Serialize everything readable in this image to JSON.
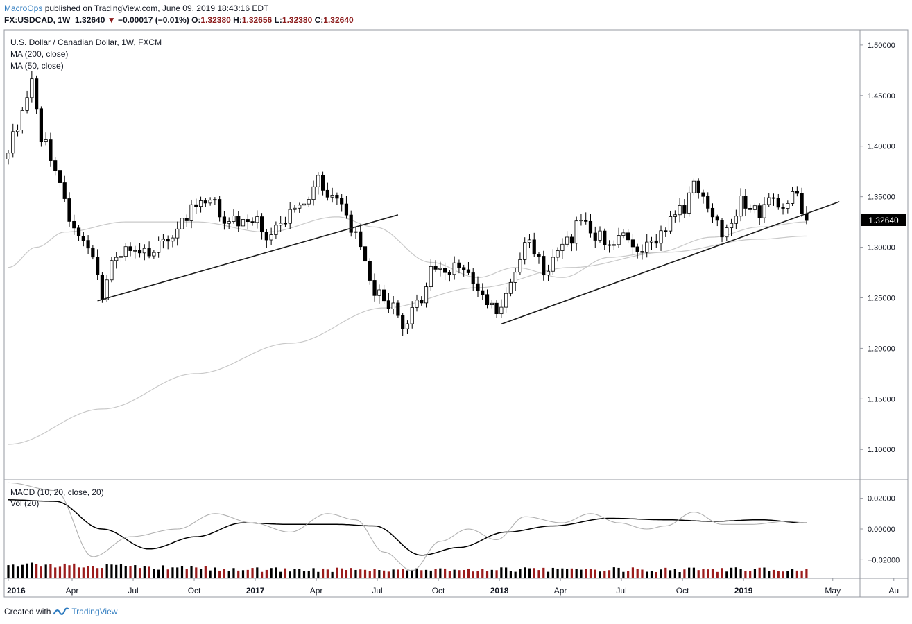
{
  "header": {
    "author": "MacroOps",
    "published": "published on TradingView.com, June 09, 2019 18:43:16 EDT",
    "symbol": "FX:USDCAD, 1W",
    "last": "1.32640",
    "change_arrow": "▼",
    "change": "−0.00017 (−0.01%)",
    "o_label": "O:",
    "o_value": "1.32380",
    "h_label": "H:",
    "h_value": "1.32656",
    "l_label": "L:",
    "l_value": "1.32380",
    "c_label": "C:",
    "c_value": "1.32640"
  },
  "footer": {
    "created_with": "Created with",
    "brand": "TradingView",
    "logo_icon": "tradingview-logo-icon"
  },
  "colors": {
    "bull": "#ffffff",
    "bear": "#000000",
    "ma": "#c8c8c8",
    "macd": "#000000",
    "signal": "#b0b0b0",
    "vol_up": "#000000",
    "vol_down": "#9b1c1c",
    "trend": "#1a1a1a",
    "axis_text": "#131722"
  },
  "chart_data": [
    {
      "type": "candlestick",
      "legend": [
        "U.S. Dollar / Canadian Dollar, 1W, FXCM",
        "MA (200, close)",
        "MA (50, close)"
      ],
      "x_ticks": [
        "2016",
        "Apr",
        "Jul",
        "Oct",
        "2017",
        "Apr",
        "Jul",
        "Oct",
        "2018",
        "Apr",
        "Jul",
        "Oct",
        "2019",
        "May",
        "Au"
      ],
      "bold_ticks": [
        "2016",
        "2017",
        "2018",
        "2019"
      ],
      "y_ticks": [
        "1.50000",
        "1.45000",
        "1.40000",
        "1.35000",
        "1.30000",
        "1.25000",
        "1.20000",
        "1.15000",
        "1.10000"
      ],
      "ylim": [
        1.07,
        1.515
      ],
      "last_price_label": "1.32640",
      "trend_anchors": [
        {
          "t": 0,
          "p": 1.4
        },
        {
          "t": 3,
          "p": 1.43
        },
        {
          "t": 5,
          "p": 1.46
        },
        {
          "t": 7,
          "p": 1.41
        },
        {
          "t": 10,
          "p": 1.38
        },
        {
          "t": 13,
          "p": 1.33
        },
        {
          "t": 16,
          "p": 1.3
        },
        {
          "t": 18,
          "p": 1.285
        },
        {
          "t": 20,
          "p": 1.255
        },
        {
          "t": 22,
          "p": 1.285
        },
        {
          "t": 25,
          "p": 1.3
        },
        {
          "t": 28,
          "p": 1.29
        },
        {
          "t": 31,
          "p": 1.3
        },
        {
          "t": 34,
          "p": 1.31
        },
        {
          "t": 37,
          "p": 1.325
        },
        {
          "t": 40,
          "p": 1.34
        },
        {
          "t": 43,
          "p": 1.345
        },
        {
          "t": 46,
          "p": 1.33
        },
        {
          "t": 49,
          "p": 1.325
        },
        {
          "t": 52,
          "p": 1.33
        },
        {
          "t": 55,
          "p": 1.31
        },
        {
          "t": 58,
          "p": 1.32
        },
        {
          "t": 61,
          "p": 1.34
        },
        {
          "t": 64,
          "p": 1.35
        },
        {
          "t": 66,
          "p": 1.37
        },
        {
          "t": 68,
          "p": 1.355
        },
        {
          "t": 70,
          "p": 1.345
        },
        {
          "t": 72,
          "p": 1.33
        },
        {
          "t": 74,
          "p": 1.31
        },
        {
          "t": 76,
          "p": 1.28
        },
        {
          "t": 78,
          "p": 1.255
        },
        {
          "t": 80,
          "p": 1.25
        },
        {
          "t": 82,
          "p": 1.24
        },
        {
          "t": 84,
          "p": 1.215
        },
        {
          "t": 86,
          "p": 1.235
        },
        {
          "t": 88,
          "p": 1.25
        },
        {
          "t": 90,
          "p": 1.28
        },
        {
          "t": 93,
          "p": 1.275
        },
        {
          "t": 96,
          "p": 1.285
        },
        {
          "t": 98,
          "p": 1.27
        },
        {
          "t": 100,
          "p": 1.255
        },
        {
          "t": 102,
          "p": 1.245
        },
        {
          "t": 104,
          "p": 1.235
        },
        {
          "t": 106,
          "p": 1.25
        },
        {
          "t": 108,
          "p": 1.275
        },
        {
          "t": 110,
          "p": 1.305
        },
        {
          "t": 112,
          "p": 1.3
        },
        {
          "t": 114,
          "p": 1.275
        },
        {
          "t": 116,
          "p": 1.285
        },
        {
          "t": 118,
          "p": 1.3
        },
        {
          "t": 120,
          "p": 1.31
        },
        {
          "t": 122,
          "p": 1.33
        },
        {
          "t": 124,
          "p": 1.315
        },
        {
          "t": 126,
          "p": 1.31
        },
        {
          "t": 128,
          "p": 1.305
        },
        {
          "t": 130,
          "p": 1.31
        },
        {
          "t": 132,
          "p": 1.305
        },
        {
          "t": 134,
          "p": 1.29
        },
        {
          "t": 136,
          "p": 1.3
        },
        {
          "t": 138,
          "p": 1.31
        },
        {
          "t": 140,
          "p": 1.32
        },
        {
          "t": 142,
          "p": 1.33
        },
        {
          "t": 144,
          "p": 1.34
        },
        {
          "t": 146,
          "p": 1.36
        },
        {
          "t": 148,
          "p": 1.355
        },
        {
          "t": 150,
          "p": 1.33
        },
        {
          "t": 152,
          "p": 1.315
        },
        {
          "t": 154,
          "p": 1.33
        },
        {
          "t": 156,
          "p": 1.345
        },
        {
          "t": 158,
          "p": 1.34
        },
        {
          "t": 160,
          "p": 1.335
        },
        {
          "t": 162,
          "p": 1.35
        },
        {
          "t": 164,
          "p": 1.34
        },
        {
          "t": 166,
          "p": 1.35
        },
        {
          "t": 168,
          "p": 1.35
        },
        {
          "t": 170,
          "p": 1.3264
        }
      ],
      "ma200_anchors": [
        {
          "t": 0,
          "p": 1.105
        },
        {
          "t": 20,
          "p": 1.14
        },
        {
          "t": 40,
          "p": 1.175
        },
        {
          "t": 60,
          "p": 1.205
        },
        {
          "t": 80,
          "p": 1.24
        },
        {
          "t": 100,
          "p": 1.26
        },
        {
          "t": 120,
          "p": 1.28
        },
        {
          "t": 140,
          "p": 1.295
        },
        {
          "t": 160,
          "p": 1.308
        },
        {
          "t": 170,
          "p": 1.311
        }
      ],
      "ma50_anchors": [
        {
          "t": 0,
          "p": 1.28
        },
        {
          "t": 6,
          "p": 1.3
        },
        {
          "t": 12,
          "p": 1.315
        },
        {
          "t": 25,
          "p": 1.325
        },
        {
          "t": 40,
          "p": 1.325
        },
        {
          "t": 55,
          "p": 1.315
        },
        {
          "t": 70,
          "p": 1.33
        },
        {
          "t": 78,
          "p": 1.32
        },
        {
          "t": 90,
          "p": 1.285
        },
        {
          "t": 100,
          "p": 1.27
        },
        {
          "t": 108,
          "p": 1.28
        },
        {
          "t": 118,
          "p": 1.27
        },
        {
          "t": 128,
          "p": 1.29
        },
        {
          "t": 138,
          "p": 1.295
        },
        {
          "t": 150,
          "p": 1.31
        },
        {
          "t": 160,
          "p": 1.32
        },
        {
          "t": 170,
          "p": 1.325
        }
      ],
      "trendlines": [
        {
          "from": {
            "t": 19,
            "p": 1.247
          },
          "to": {
            "t": 83,
            "p": 1.332
          }
        },
        {
          "from": {
            "t": 105,
            "p": 1.224
          },
          "to": {
            "t": 177,
            "p": 1.345
          }
        }
      ]
    },
    {
      "type": "line",
      "legend": [
        "MACD (10, 20, close, 20)",
        "Vol (20)"
      ],
      "y_ticks": [
        "0.02000",
        "0.00000",
        "−0.02000"
      ],
      "ylim": [
        -0.032,
        0.032
      ],
      "macd_anchors": [
        {
          "t": 0,
          "v": 0.03
        },
        {
          "t": 10,
          "v": 0.025
        },
        {
          "t": 18,
          "v": -0.018
        },
        {
          "t": 26,
          "v": -0.005
        },
        {
          "t": 36,
          "v": 0.0
        },
        {
          "t": 44,
          "v": 0.01
        },
        {
          "t": 52,
          "v": 0.004
        },
        {
          "t": 60,
          "v": -0.002
        },
        {
          "t": 68,
          "v": 0.01
        },
        {
          "t": 74,
          "v": 0.006
        },
        {
          "t": 80,
          "v": -0.015
        },
        {
          "t": 86,
          "v": -0.027
        },
        {
          "t": 92,
          "v": -0.008
        },
        {
          "t": 98,
          "v": 0.0
        },
        {
          "t": 104,
          "v": -0.007
        },
        {
          "t": 110,
          "v": 0.008
        },
        {
          "t": 118,
          "v": 0.004
        },
        {
          "t": 124,
          "v": 0.01
        },
        {
          "t": 130,
          "v": 0.004
        },
        {
          "t": 136,
          "v": 0.0
        },
        {
          "t": 140,
          "v": 0.002
        },
        {
          "t": 146,
          "v": 0.011
        },
        {
          "t": 152,
          "v": 0.003
        },
        {
          "t": 158,
          "v": 0.003
        },
        {
          "t": 166,
          "v": 0.005
        },
        {
          "t": 170,
          "v": 0.004
        }
      ],
      "signal_anchors": [
        {
          "t": 0,
          "v": 0.019
        },
        {
          "t": 10,
          "v": 0.018
        },
        {
          "t": 20,
          "v": 0.0
        },
        {
          "t": 30,
          "v": -0.013
        },
        {
          "t": 40,
          "v": -0.005
        },
        {
          "t": 50,
          "v": 0.004
        },
        {
          "t": 60,
          "v": 0.003
        },
        {
          "t": 70,
          "v": 0.003
        },
        {
          "t": 78,
          "v": 0.002
        },
        {
          "t": 88,
          "v": -0.017
        },
        {
          "t": 96,
          "v": -0.012
        },
        {
          "t": 106,
          "v": -0.002
        },
        {
          "t": 116,
          "v": 0.002
        },
        {
          "t": 128,
          "v": 0.007
        },
        {
          "t": 140,
          "v": 0.006
        },
        {
          "t": 150,
          "v": 0.005
        },
        {
          "t": 160,
          "v": 0.006
        },
        {
          "t": 170,
          "v": 0.004
        }
      ]
    }
  ]
}
